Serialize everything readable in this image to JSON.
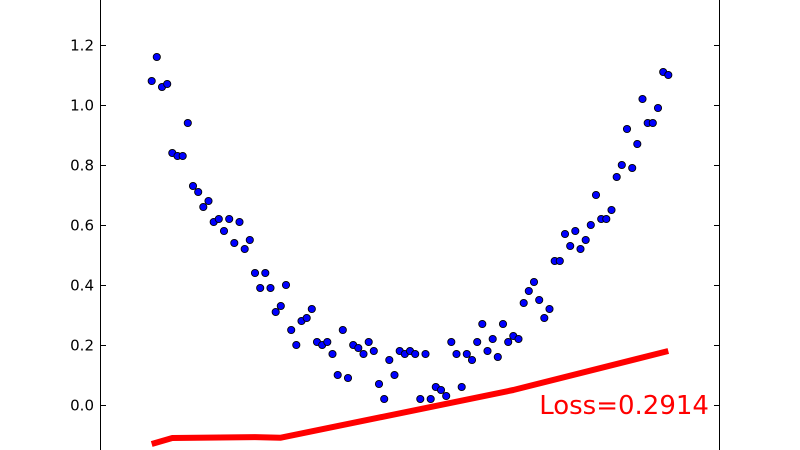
{
  "chart_data": {
    "type": "scatter",
    "ylim": [
      -0.15,
      1.35
    ],
    "xlim": [
      -1.2,
      1.2
    ],
    "yticks": [
      "0.0",
      "0.2",
      "0.4",
      "0.6",
      "0.8",
      "1.0",
      "1.2"
    ],
    "ytick_values": [
      0.0,
      0.2,
      0.4,
      0.6,
      0.8,
      1.0,
      1.2
    ],
    "grid": false,
    "legend": "none",
    "series": [
      {
        "kind": "scatter",
        "color": "#0000ff",
        "edge_color": "#000000",
        "x": [
          -1.0,
          -0.98,
          -0.96,
          -0.94,
          -0.92,
          -0.9,
          -0.88,
          -0.86,
          -0.84,
          -0.82,
          -0.8,
          -0.78,
          -0.76,
          -0.74,
          -0.72,
          -0.7,
          -0.68,
          -0.66,
          -0.64,
          -0.62,
          -0.6,
          -0.58,
          -0.56,
          -0.54,
          -0.52,
          -0.5,
          -0.48,
          -0.46,
          -0.44,
          -0.42,
          -0.4,
          -0.38,
          -0.36,
          -0.34,
          -0.32,
          -0.3,
          -0.28,
          -0.26,
          -0.24,
          -0.22,
          -0.2,
          -0.18,
          -0.16,
          -0.14,
          -0.12,
          -0.1,
          -0.08,
          -0.06,
          -0.04,
          -0.02,
          0.0,
          0.02,
          0.04,
          0.06,
          0.08,
          0.1,
          0.12,
          0.14,
          0.16,
          0.18,
          0.2,
          0.22,
          0.24,
          0.26,
          0.28,
          0.3,
          0.32,
          0.34,
          0.36,
          0.38,
          0.4,
          0.42,
          0.44,
          0.46,
          0.48,
          0.5,
          0.52,
          0.54,
          0.56,
          0.58,
          0.6,
          0.62,
          0.64,
          0.66,
          0.68,
          0.7,
          0.72,
          0.74,
          0.76,
          0.78,
          0.8,
          0.82,
          0.84,
          0.86,
          0.88,
          0.9,
          0.92,
          0.94,
          0.96,
          0.98,
          1.0
        ],
        "y": [
          1.08,
          1.16,
          1.06,
          1.07,
          0.84,
          0.83,
          0.83,
          0.94,
          0.73,
          0.71,
          0.66,
          0.68,
          0.61,
          0.62,
          0.58,
          0.62,
          0.54,
          0.61,
          0.52,
          0.55,
          0.44,
          0.39,
          0.44,
          0.39,
          0.31,
          0.33,
          0.4,
          0.25,
          0.2,
          0.28,
          0.29,
          0.32,
          0.21,
          0.2,
          0.21,
          0.17,
          0.1,
          0.25,
          0.09,
          0.2,
          0.19,
          0.17,
          0.21,
          0.18,
          0.07,
          0.02,
          0.15,
          0.1,
          0.18,
          0.17,
          0.18,
          0.17,
          0.02,
          0.17,
          0.02,
          0.06,
          0.05,
          0.03,
          0.21,
          0.17,
          0.06,
          0.17,
          0.15,
          0.21,
          0.27,
          0.18,
          0.22,
          0.16,
          0.27,
          0.21,
          0.23,
          0.22,
          0.34,
          0.38,
          0.41,
          0.35,
          0.29,
          0.32,
          0.48,
          0.48,
          0.57,
          0.53,
          0.58,
          0.52,
          0.55,
          0.6,
          0.7,
          0.62,
          0.62,
          0.65,
          0.76,
          0.8,
          0.92,
          0.79,
          0.87,
          1.02,
          0.94,
          0.94,
          0.99,
          1.11,
          1.1
        ]
      },
      {
        "kind": "line",
        "color": "#ff0000",
        "x": [
          -1.0,
          -0.92,
          -0.6,
          -0.5,
          0.4,
          1.0
        ],
        "y": [
          -0.13,
          -0.11,
          -0.107,
          -0.109,
          0.05,
          0.18
        ]
      }
    ],
    "annotation": {
      "text": "Loss=0.2914",
      "color": "#ff0000",
      "x": 0.5,
      "y": -0.03
    }
  }
}
